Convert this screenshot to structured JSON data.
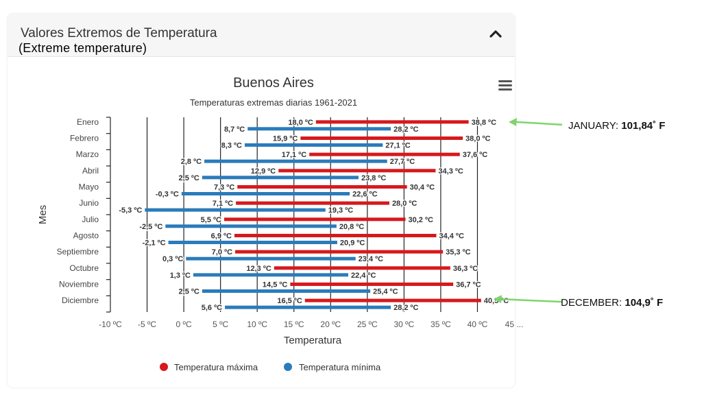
{
  "panel": {
    "title": "Valores Extremos de Temperatura",
    "subtitle": "(Extreme temperature)"
  },
  "chart_data": {
    "type": "bar",
    "title": "Buenos Aires",
    "subtitle": "Temperaturas extremas diarias 1961-2021",
    "xlabel": "Temperatura",
    "ylabel": "Mes",
    "xlim": [
      -10,
      45
    ],
    "x_ticks": [
      "-10 ºC",
      "-5 ºC",
      "0 ºC",
      "5 ºC",
      "10 ºC",
      "15 ºC",
      "20 ºC",
      "25 ºC",
      "30 ºC",
      "35 ºC",
      "40 ºC",
      "45 ..."
    ],
    "grid": true,
    "legend_position": "bottom",
    "categories": [
      "Enero",
      "Febrero",
      "Marzo",
      "Abril",
      "Mayo",
      "Junio",
      "Julio",
      "Agosto",
      "Septiembre",
      "Octubre",
      "Noviembre",
      "Diciembre"
    ],
    "series": [
      {
        "name": "Temperatura máxima",
        "color": "#d7191c",
        "low": [
          18.0,
          15.9,
          17.1,
          12.9,
          7.3,
          7.1,
          5.5,
          6.9,
          7.0,
          12.3,
          14.5,
          16.5
        ],
        "high": [
          38.8,
          38.0,
          37.6,
          34.3,
          30.4,
          28.0,
          30.2,
          34.4,
          35.3,
          36.3,
          36.7,
          40.5
        ],
        "low_labels": [
          "18,0 ºC",
          "15,9 ºC",
          "17,1 ºC",
          "12,9 ºC",
          "7,3 ºC",
          "7,1 ºC",
          "5,5 ºC",
          "6,9 ºC",
          "7,0 ºC",
          "12,3 ºC",
          "14,5 ºC",
          "16,5 ºC"
        ],
        "high_labels": [
          "38,8 ºC",
          "38,0 ºC",
          "37,6 ºC",
          "34,3 ºC",
          "30,4 ºC",
          "28,0 ºC",
          "30,2 ºC",
          "34,4 ºC",
          "35,3 ºC",
          "36,3 ºC",
          "36,7 ºC",
          "40,5 ºC"
        ]
      },
      {
        "name": "Temperatura mínima",
        "color": "#2b7bba",
        "low": [
          8.7,
          8.3,
          2.8,
          2.5,
          -0.3,
          -5.3,
          -2.5,
          -2.1,
          0.3,
          1.3,
          2.5,
          5.6
        ],
        "high": [
          28.2,
          27.1,
          27.7,
          23.8,
          22.6,
          19.3,
          20.8,
          20.9,
          23.4,
          22.4,
          25.4,
          28.2
        ],
        "low_labels": [
          "8,7 ºC",
          "8,3 ºC",
          "2,8 ºC",
          "2,5 ºC",
          "-0,3 ºC",
          "-5,3 ºC",
          "-2,5 ºC",
          "-2,1 ºC",
          "0,3 ºC",
          "1,3 ºC",
          "2,5 ºC",
          "5,6 ºC"
        ],
        "high_labels": [
          "28,2 ºC",
          "27,1 ºC",
          "27,7 ºC",
          "23,8 ºC",
          "22,6 ºC",
          "19,3 ºC",
          "20,8 ºC",
          "20,9 ºC",
          "23,4 ºC",
          "22,4 ºC",
          "25,4 ºC",
          "28,2 ºC"
        ]
      }
    ],
    "annotations": [
      {
        "label": "JANUARY:",
        "value": "101,84˚ F",
        "month": "Enero",
        "color": "#7ed46c"
      },
      {
        "label": "DECEMBER:",
        "value": "104,9˚ F",
        "month": "Diciembre",
        "color": "#7ed46c"
      }
    ]
  },
  "menu_icon": "hamburger-menu-icon",
  "collapse_icon": "chevron-up-icon"
}
